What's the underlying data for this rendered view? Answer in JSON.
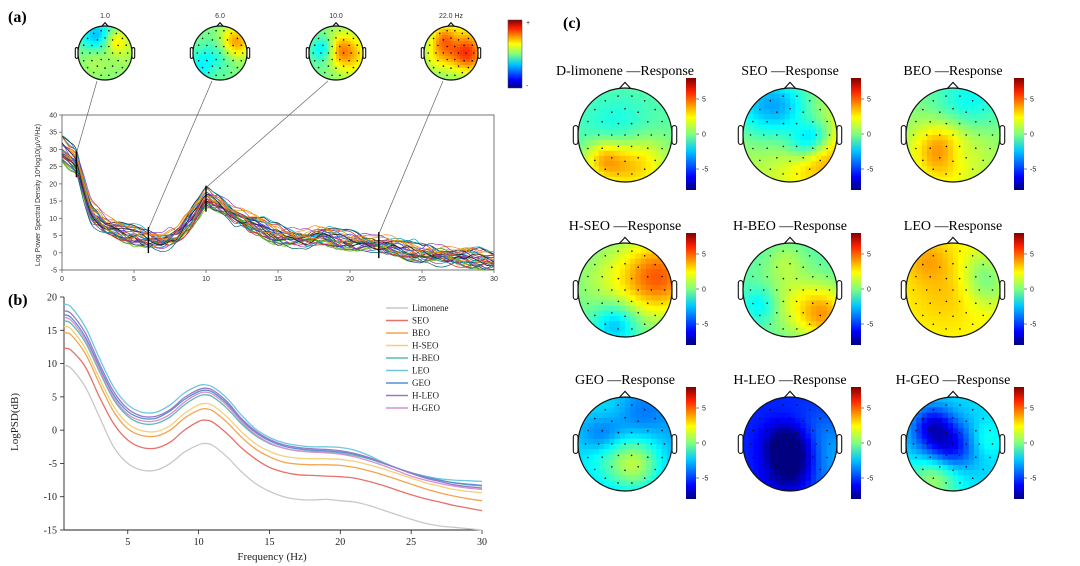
{
  "panel_labels": {
    "a": "(a)",
    "b": "(b)",
    "c": "(c)"
  },
  "chart_data": [
    {
      "panel": "(a)",
      "type": "line",
      "topomap_labels": [
        "1.0",
        "6.0",
        "10.0",
        "22.0 Hz"
      ],
      "topomap_freqs": [
        1,
        6,
        10,
        22
      ],
      "colorbar_labels": [
        "+",
        "-"
      ],
      "ylabel": "Log Power Spectral Density 10*log10(μV²/Hz)",
      "xlabel": "",
      "xlim": [
        0,
        30
      ],
      "ylim": [
        -5,
        40
      ],
      "xticks": [
        "0",
        "5",
        "10",
        "15",
        "20",
        "25",
        "30"
      ],
      "yticks": [
        "-5",
        "0",
        "5",
        "10",
        "15",
        "20",
        "25",
        "30",
        "35",
        "40"
      ],
      "channel_count": 32,
      "approx_profile": {
        "x": [
          0,
          1,
          2,
          3,
          4,
          5,
          6,
          7,
          8,
          9,
          10,
          11,
          12,
          13,
          14,
          15,
          16,
          17,
          18,
          19,
          20,
          21,
          22,
          23,
          24,
          25,
          26,
          27,
          28,
          29,
          30
        ],
        "y": [
          30,
          26,
          12,
          8,
          6,
          5,
          4,
          3.5,
          5,
          10,
          16,
          14,
          11,
          9,
          7,
          5,
          4.5,
          4,
          5,
          4,
          3.5,
          3,
          2.5,
          1.5,
          0.5,
          0,
          -0.5,
          -1,
          -1.5,
          -2,
          -2.5
        ]
      }
    },
    {
      "panel": "(b)",
      "type": "line",
      "xlabel": "Frequency (Hz)",
      "ylabel": "LogPSD(dB)",
      "xlim": [
        0.5,
        30
      ],
      "ylim": [
        -15,
        20
      ],
      "xticks": [
        5,
        10,
        15,
        20,
        25,
        30
      ],
      "yticks": [
        -15,
        -10,
        -5,
        0,
        5,
        10,
        15,
        20
      ],
      "legend_position": "top-right",
      "x": [
        0.5,
        1,
        2,
        3,
        4,
        5,
        6,
        7,
        8,
        9,
        10,
        10.5,
        11,
        12,
        13,
        14,
        15,
        16,
        17,
        18,
        19,
        20,
        21,
        22,
        23,
        24,
        25,
        26,
        27,
        28,
        29,
        30
      ],
      "series": [
        {
          "name": "Limonene",
          "color": "#c8c8c8",
          "values": [
            9.7,
            9.3,
            6.5,
            2.0,
            -2.5,
            -5.0,
            -6.0,
            -6.0,
            -5.0,
            -3.3,
            -2.2,
            -2.0,
            -2.3,
            -4.0,
            -6.2,
            -8.0,
            -9.2,
            -10.0,
            -10.4,
            -10.5,
            -10.4,
            -10.6,
            -10.8,
            -11.3,
            -12.0,
            -12.7,
            -13.4,
            -14.0,
            -14.4,
            -14.6,
            -14.8,
            -15.0
          ]
        },
        {
          "name": "SEO",
          "color": "#e8706a",
          "values": [
            12.3,
            12.0,
            9.5,
            5.0,
            1.0,
            -1.5,
            -2.6,
            -2.7,
            -1.8,
            0.0,
            1.3,
            1.5,
            1.2,
            -0.5,
            -2.6,
            -4.3,
            -5.6,
            -6.3,
            -6.7,
            -6.8,
            -6.9,
            -7.0,
            -7.2,
            -7.7,
            -8.3,
            -9.0,
            -9.7,
            -10.3,
            -10.8,
            -11.3,
            -11.7,
            -12.1
          ]
        },
        {
          "name": "BEO",
          "color": "#f4a34e",
          "values": [
            14.6,
            14.3,
            11.5,
            7.0,
            2.8,
            0.2,
            -0.8,
            -0.9,
            0.0,
            1.8,
            3.0,
            3.2,
            2.9,
            1.2,
            -1.0,
            -2.8,
            -4.0,
            -4.8,
            -5.1,
            -5.2,
            -5.2,
            -5.3,
            -5.6,
            -6.1,
            -6.7,
            -7.4,
            -8.1,
            -8.8,
            -9.4,
            -9.9,
            -10.3,
            -10.6
          ]
        },
        {
          "name": "H-SEO",
          "color": "#f3d07a",
          "values": [
            15.6,
            15.2,
            12.3,
            7.8,
            3.6,
            1.0,
            -0.1,
            -0.2,
            0.7,
            2.5,
            3.8,
            4.0,
            3.7,
            2.0,
            -0.2,
            -2.0,
            -3.2,
            -3.9,
            -4.2,
            -4.3,
            -4.3,
            -4.4,
            -4.7,
            -5.2,
            -5.8,
            -6.5,
            -7.2,
            -7.9,
            -8.4,
            -8.9,
            -9.2,
            -9.4
          ]
        },
        {
          "name": "H-BEO",
          "color": "#5dbbb0",
          "values": [
            16.4,
            16.0,
            13.2,
            8.8,
            4.6,
            2.1,
            1.0,
            1.0,
            2.0,
            3.8,
            5.1,
            5.3,
            5.0,
            3.3,
            1.0,
            -0.8,
            -2.0,
            -2.7,
            -3.1,
            -3.2,
            -3.3,
            -3.5,
            -3.8,
            -4.3,
            -5.0,
            -5.7,
            -6.4,
            -7.0,
            -7.5,
            -7.9,
            -8.2,
            -8.4
          ]
        },
        {
          "name": "LEO",
          "color": "#6fc6e0",
          "values": [
            18.9,
            18.5,
            15.5,
            10.8,
            6.5,
            3.8,
            2.7,
            2.7,
            3.8,
            5.6,
            6.7,
            6.8,
            6.5,
            4.8,
            2.3,
            0.2,
            -1.1,
            -1.9,
            -2.3,
            -2.5,
            -2.5,
            -2.6,
            -3.0,
            -3.8,
            -4.8,
            -5.7,
            -6.4,
            -6.9,
            -7.3,
            -7.5,
            -7.6,
            -7.7
          ]
        },
        {
          "name": "GEO",
          "color": "#5a8fd6",
          "values": [
            17.3,
            16.9,
            14.0,
            9.5,
            5.3,
            2.8,
            1.8,
            1.8,
            2.9,
            4.6,
            5.8,
            6.0,
            5.7,
            4.0,
            1.6,
            -0.3,
            -1.6,
            -2.4,
            -2.8,
            -3.0,
            -3.1,
            -3.3,
            -3.6,
            -4.2,
            -4.9,
            -5.7,
            -6.4,
            -7.0,
            -7.5,
            -7.9,
            -8.1,
            -8.3
          ]
        },
        {
          "name": "H-LEO",
          "color": "#9a78c8",
          "values": [
            17.9,
            17.5,
            14.6,
            10.0,
            5.8,
            3.2,
            2.1,
            2.1,
            3.1,
            4.9,
            6.1,
            6.3,
            6.0,
            4.3,
            1.8,
            -0.1,
            -1.4,
            -2.2,
            -2.6,
            -2.8,
            -2.9,
            -3.1,
            -3.5,
            -4.1,
            -4.9,
            -5.7,
            -6.5,
            -7.2,
            -7.7,
            -8.2,
            -8.5,
            -8.7
          ]
        },
        {
          "name": "H-GEO",
          "color": "#d98fd0",
          "values": [
            16.9,
            16.5,
            13.6,
            9.1,
            4.9,
            2.4,
            1.4,
            1.4,
            2.4,
            4.2,
            5.5,
            5.7,
            5.4,
            3.7,
            1.3,
            -0.6,
            -1.9,
            -2.7,
            -3.1,
            -3.3,
            -3.4,
            -3.6,
            -4.0,
            -4.6,
            -5.3,
            -6.1,
            -6.9,
            -7.5,
            -8.0,
            -8.4,
            -8.7,
            -8.9
          ]
        }
      ]
    },
    {
      "panel": "(c)",
      "type": "heatmap",
      "colorbar_ticks": [
        "5",
        "0",
        "-5"
      ],
      "colorbar_range": [
        -8,
        8
      ],
      "maps": [
        {
          "title": "D-limonene —Response",
          "level": -0.5
        },
        {
          "title": "SEO —Response",
          "level": 1.0
        },
        {
          "title": "BEO —Response",
          "level": 0.0
        },
        {
          "title": "H-SEO —Response",
          "level": -0.5
        },
        {
          "title": "H-BEO —Response",
          "level": -0.7
        },
        {
          "title": "LEO —Response",
          "level": 2.0
        },
        {
          "title": "GEO —Response",
          "level": -3.5
        },
        {
          "title": "H-LEO —Response",
          "level": -5.5
        },
        {
          "title": "H-GEO —Response",
          "level": -2.5
        }
      ]
    }
  ]
}
